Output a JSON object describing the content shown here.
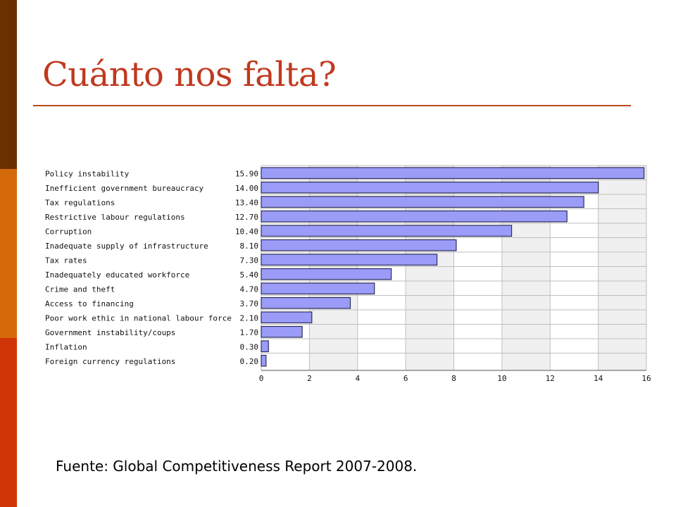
{
  "theme": {
    "bar_colors": [
      "#6b3000",
      "#d56a0b",
      "#d03508"
    ],
    "title_color": "#c0391f",
    "rule_color": "#b84a1a",
    "bar_fill": "#9a9cf8",
    "bar_stroke": "#2d2d5a",
    "grid_bg_light": "#ffffff",
    "grid_bg_dark": "#f0f0f0",
    "grid_line": "#bfbfbf",
    "axis_color": "#555555"
  },
  "slide": {
    "title": "Cuánto nos falta?",
    "source": "Fuente: Global Competitiveness Report 2007-2008."
  },
  "chart_data": {
    "type": "bar",
    "orientation": "horizontal",
    "categories": [
      "Policy instability",
      "Inefficient government bureaucracy",
      "Tax regulations",
      "Restrictive labour regulations",
      "Corruption",
      "Inadequate supply of infrastructure",
      "Tax rates",
      "Inadequately educated workforce",
      "Crime and theft",
      "Access to financing",
      "Poor work ethic in national labour force",
      "Government instability/coups",
      "Inflation",
      "Foreign currency regulations"
    ],
    "values": [
      15.9,
      14.0,
      13.4,
      12.7,
      10.4,
      8.1,
      7.3,
      5.4,
      4.7,
      3.7,
      2.1,
      1.7,
      0.3,
      0.2
    ],
    "value_labels": [
      "15.90",
      "14.00",
      "13.40",
      "12.70",
      "10.40",
      "8.10",
      "7.30",
      "5.40",
      "4.70",
      "3.70",
      "2.10",
      "1.70",
      "0.30",
      "0.20"
    ],
    "xlim": [
      0,
      16
    ],
    "xticks": [
      0,
      2,
      4,
      6,
      8,
      10,
      12,
      14,
      16
    ],
    "grid": true
  }
}
